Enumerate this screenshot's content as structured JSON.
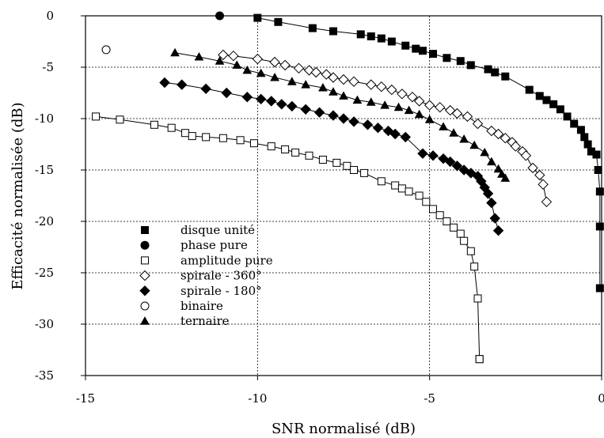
{
  "chart_data": {
    "type": "scatter",
    "title": "",
    "xlabel": "SNR normalisé (dB)",
    "ylabel": "Efficacité normalisée (dB)",
    "xlim": [
      -15,
      0
    ],
    "ylim": [
      -35,
      0
    ],
    "xticks": [
      -15,
      -10,
      -5,
      0
    ],
    "xtick_labels": [
      "-15",
      "-10",
      "-5",
      "0"
    ],
    "yticks": [
      0,
      -5,
      -10,
      -15,
      -20,
      -25,
      -30,
      -35
    ],
    "ytick_labels": [
      "0",
      "-5",
      "-10",
      "-15",
      "-20",
      "-25",
      "-30",
      "-35"
    ],
    "grid": true,
    "legend_position": "bottom-left",
    "series": [
      {
        "name": "disque unité",
        "marker": "square-filled",
        "line": true,
        "x": [
          -10.0,
          -9.4,
          -8.4,
          -7.8,
          -7.0,
          -6.7,
          -6.4,
          -6.1,
          -5.7,
          -5.4,
          -5.2,
          -4.9,
          -4.5,
          -4.1,
          -3.8,
          -3.3,
          -3.1,
          -2.8,
          -2.1,
          -1.8,
          -1.6,
          -1.4,
          -1.2,
          -1.0,
          -0.8,
          -0.6,
          -0.5,
          -0.4,
          -0.3,
          -0.15,
          -0.1,
          -0.05,
          -0.05,
          -0.05
        ],
        "y": [
          -0.2,
          -0.6,
          -1.2,
          -1.5,
          -1.8,
          -2.0,
          -2.2,
          -2.5,
          -2.9,
          -3.2,
          -3.4,
          -3.7,
          -4.1,
          -4.4,
          -4.8,
          -5.2,
          -5.5,
          -5.9,
          -7.2,
          -7.8,
          -8.2,
          -8.6,
          -9.1,
          -9.8,
          -10.5,
          -11.1,
          -11.8,
          -12.5,
          -13.2,
          -13.5,
          -15.0,
          -17.1,
          -20.5,
          -26.5
        ]
      },
      {
        "name": "phase pure",
        "marker": "circle-filled",
        "line": false,
        "x": [
          -11.1
        ],
        "y": [
          0
        ]
      },
      {
        "name": "amplitude pure",
        "marker": "square-open",
        "line": true,
        "x": [
          -14.7,
          -14.0,
          -13.0,
          -12.5,
          -12.1,
          -11.9,
          -11.5,
          -11.0,
          -10.5,
          -10.1,
          -9.6,
          -9.2,
          -8.9,
          -8.5,
          -8.1,
          -7.7,
          -7.4,
          -7.2,
          -6.9,
          -6.4,
          -6.0,
          -5.8,
          -5.6,
          -5.3,
          -5.1,
          -4.9,
          -4.7,
          -4.5,
          -4.3,
          -4.1,
          -4.0,
          -3.8,
          -3.7,
          -3.6,
          -3.55,
          -3.55
        ],
        "y": [
          -9.8,
          -10.1,
          -10.6,
          -10.9,
          -11.4,
          -11.7,
          -11.8,
          -11.9,
          -12.1,
          -12.4,
          -12.7,
          -13.0,
          -13.3,
          -13.6,
          -14.0,
          -14.3,
          -14.6,
          -15.0,
          -15.3,
          -16.1,
          -16.5,
          -16.8,
          -17.1,
          -17.5,
          -18.1,
          -18.8,
          -19.4,
          -20.0,
          -20.6,
          -21.2,
          -21.9,
          -22.9,
          -24.4,
          -27.5,
          -33.4,
          -33.4
        ]
      },
      {
        "name": "spirale - 360°",
        "marker": "diamond-open",
        "line": true,
        "x": [
          -11.0,
          -10.7,
          -10.0,
          -9.5,
          -9.2,
          -8.8,
          -8.5,
          -8.3,
          -8.0,
          -7.8,
          -7.5,
          -7.2,
          -6.7,
          -6.4,
          -6.1,
          -5.8,
          -5.5,
          -5.3,
          -5.0,
          -4.7,
          -4.4,
          -4.2,
          -3.9,
          -3.6,
          -3.2,
          -3.0,
          -2.8,
          -2.6,
          -2.5,
          -2.3,
          -2.2,
          -2.0,
          -1.8,
          -1.7,
          -1.6
        ],
        "y": [
          -3.8,
          -3.9,
          -4.2,
          -4.5,
          -4.8,
          -5.1,
          -5.3,
          -5.5,
          -5.7,
          -6.0,
          -6.2,
          -6.4,
          -6.7,
          -6.9,
          -7.2,
          -7.6,
          -7.9,
          -8.3,
          -8.7,
          -8.9,
          -9.2,
          -9.5,
          -9.8,
          -10.5,
          -11.2,
          -11.5,
          -11.9,
          -12.3,
          -12.7,
          -13.2,
          -13.6,
          -14.8,
          -15.5,
          -16.4,
          -18.1
        ]
      },
      {
        "name": "spirale - 180°",
        "marker": "diamond-filled",
        "line": true,
        "x": [
          -12.7,
          -12.2,
          -11.5,
          -10.9,
          -10.3,
          -9.9,
          -9.6,
          -9.3,
          -9.0,
          -8.6,
          -8.2,
          -7.8,
          -7.5,
          -7.2,
          -6.8,
          -6.5,
          -6.2,
          -6.0,
          -5.7,
          -5.2,
          -4.9,
          -4.6,
          -4.4,
          -4.2,
          -4.0,
          -3.8,
          -3.6,
          -3.5,
          -3.4,
          -3.3,
          -3.2,
          -3.1,
          -3.0
        ],
        "y": [
          -6.5,
          -6.7,
          -7.1,
          -7.5,
          -7.9,
          -8.1,
          -8.3,
          -8.6,
          -8.8,
          -9.1,
          -9.4,
          -9.7,
          -10.0,
          -10.3,
          -10.6,
          -10.9,
          -11.2,
          -11.5,
          -11.8,
          -13.4,
          -13.6,
          -13.9,
          -14.2,
          -14.6,
          -15.0,
          -15.3,
          -15.6,
          -16.1,
          -16.7,
          -17.3,
          -18.2,
          -19.7,
          -20.9
        ]
      },
      {
        "name": "binaire",
        "marker": "circle-open",
        "line": false,
        "x": [
          -14.4
        ],
        "y": [
          -3.3
        ]
      },
      {
        "name": "ternaire",
        "marker": "triangle-filled",
        "line": true,
        "x": [
          -12.4,
          -11.7,
          -11.1,
          -10.6,
          -10.3,
          -9.9,
          -9.5,
          -9.0,
          -8.6,
          -8.1,
          -7.8,
          -7.5,
          -7.1,
          -6.7,
          -6.3,
          -5.9,
          -5.6,
          -5.3,
          -5.0,
          -4.6,
          -4.3,
          -4.0,
          -3.7,
          -3.4,
          -3.2,
          -3.0,
          -2.9,
          -2.8
        ],
        "y": [
          -3.6,
          -4.0,
          -4.4,
          -4.8,
          -5.3,
          -5.6,
          -6.0,
          -6.4,
          -6.7,
          -7.0,
          -7.4,
          -7.8,
          -8.2,
          -8.4,
          -8.7,
          -8.9,
          -9.2,
          -9.6,
          -10.1,
          -10.8,
          -11.4,
          -12.0,
          -12.6,
          -13.3,
          -14.2,
          -14.9,
          -15.4,
          -15.8
        ]
      }
    ]
  }
}
